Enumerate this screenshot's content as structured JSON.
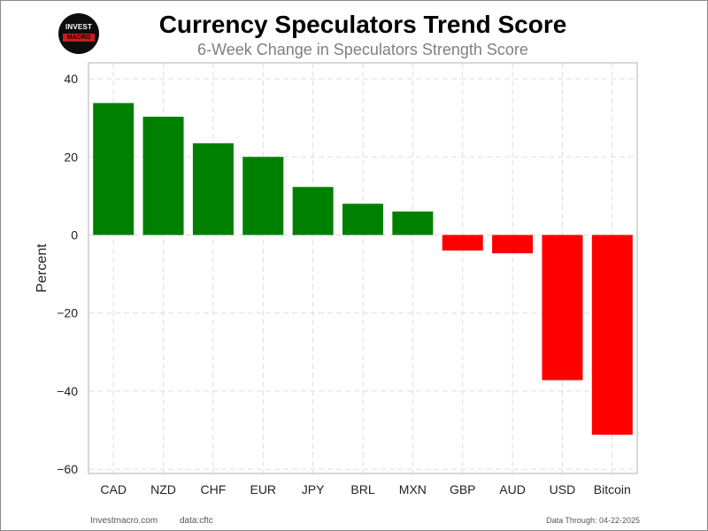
{
  "logo": {
    "line1": "INVEST",
    "line2": "MACRO"
  },
  "footer": {
    "site": "Investmacro.com",
    "source": "data:cftc",
    "through": "Data Through: 04-22-2025"
  },
  "chart_data": {
    "type": "bar",
    "title": "Currency Speculators Trend Score",
    "subtitle": "6-Week Change in Speculators Strength Score",
    "xlabel": "",
    "ylabel": "Percent",
    "categories": [
      "CAD",
      "NZD",
      "CHF",
      "EUR",
      "JPY",
      "BRL",
      "MXN",
      "GBP",
      "AUD",
      "USD",
      "Bitcoin"
    ],
    "values": [
      33.8,
      30.3,
      23.5,
      20.0,
      12.3,
      8.0,
      6.0,
      -4.0,
      -4.7,
      -37.2,
      -51.2
    ],
    "ylim": [
      -61.5,
      44
    ],
    "yticks": [
      40,
      20,
      0,
      -20,
      -40,
      -60
    ],
    "ytick_labels": [
      "40",
      "20",
      "0",
      "−20",
      "−40",
      "−60"
    ],
    "grid": true,
    "legend": "none",
    "colors": {
      "positive": "#008000",
      "negative": "#ff0000",
      "grid": "#dddddd",
      "axes": "#cccccc"
    }
  }
}
